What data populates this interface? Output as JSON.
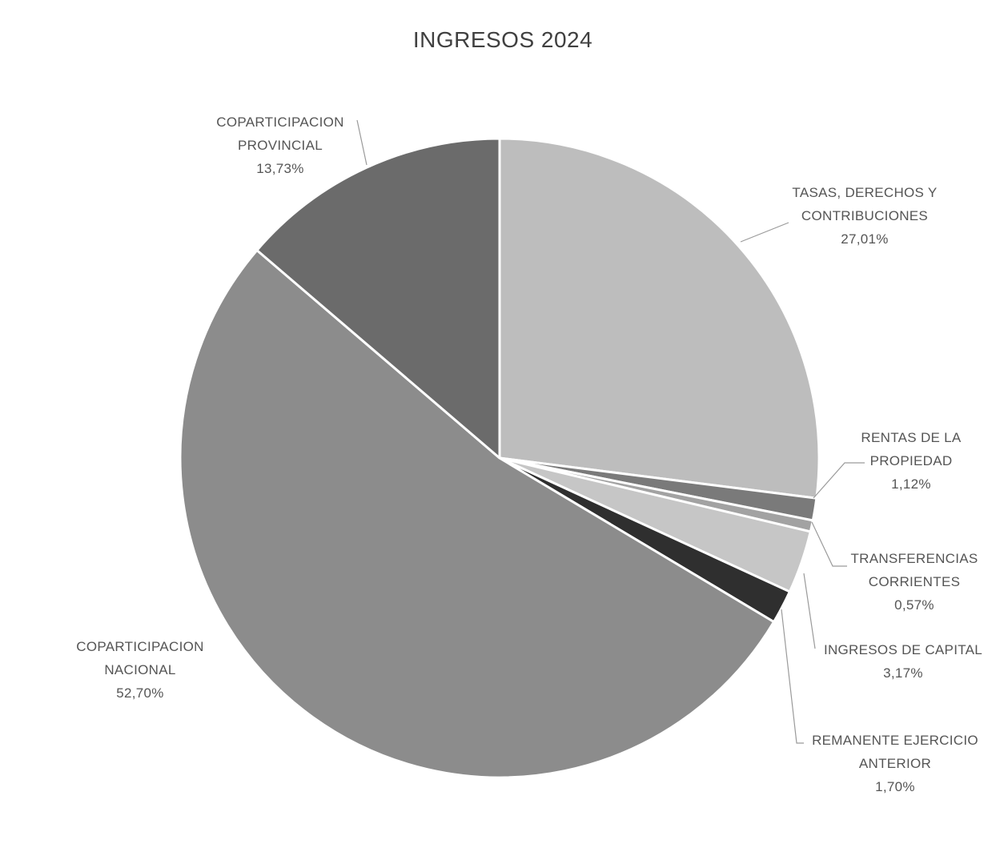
{
  "chart_data": {
    "type": "pie",
    "title": "INGRESOS 2024",
    "slices": [
      {
        "name": "TASAS, DERECHOS Y CONTRIBUCIONES",
        "label_lines": [
          "TASAS, DERECHOS Y",
          "CONTRIBUCIONES"
        ],
        "value": 27.01,
        "value_label": "27,01%",
        "color": "#bdbdbd"
      },
      {
        "name": "RENTAS DE LA PROPIEDAD",
        "label_lines": [
          "RENTAS DE LA",
          "PROPIEDAD"
        ],
        "value": 1.12,
        "value_label": "1,12%",
        "color": "#7a7a7a"
      },
      {
        "name": "TRANSFERENCIAS CORRIENTES",
        "label_lines": [
          "TRANSFERENCIAS",
          "CORRIENTES"
        ],
        "value": 0.57,
        "value_label": "0,57%",
        "color": "#a2a2a2"
      },
      {
        "name": "INGRESOS DE CAPITAL",
        "label_lines": [
          "INGRESOS DE CAPITAL"
        ],
        "value": 3.17,
        "value_label": "3,17%",
        "color": "#c6c6c6"
      },
      {
        "name": "REMANENTE EJERCICIO ANTERIOR",
        "label_lines": [
          "REMANENTE EJERCICIO",
          "ANTERIOR"
        ],
        "value": 1.7,
        "value_label": "1,70%",
        "color": "#2f2f2f"
      },
      {
        "name": "COPARTICIPACION NACIONAL",
        "label_lines": [
          "COPARTICIPACION",
          "NACIONAL"
        ],
        "value": 52.7,
        "value_label": "52,70%",
        "color": "#8c8c8c"
      },
      {
        "name": "COPARTICIPACION PROVINCIAL",
        "label_lines": [
          "COPARTICIPACION",
          "PROVINCIAL"
        ],
        "value": 13.73,
        "value_label": "13,73%",
        "color": "#6b6b6b"
      }
    ]
  }
}
